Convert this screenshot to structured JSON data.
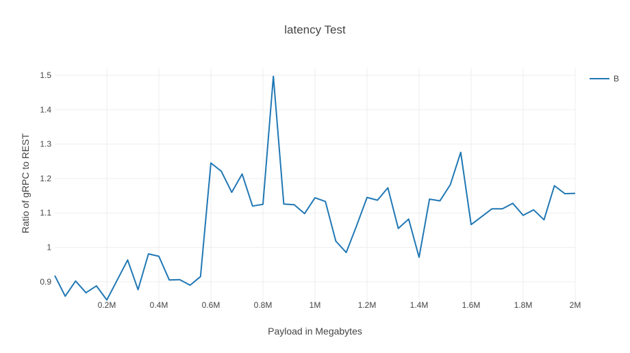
{
  "chart_data": {
    "type": "line",
    "title": "latency Test",
    "xlabel": "Payload in Megabytes",
    "ylabel": "Ratio of gRPC to REST",
    "xlim": [
      0.0,
      2.0
    ],
    "ylim": [
      0.84,
      1.52
    ],
    "grid": true,
    "legend_position": "top-right",
    "x_ticks": [
      {
        "value": 0.2,
        "label": "0.2M"
      },
      {
        "value": 0.4,
        "label": "0.4M"
      },
      {
        "value": 0.6,
        "label": "0.6M"
      },
      {
        "value": 0.8,
        "label": "0.8M"
      },
      {
        "value": 1.0,
        "label": "1M"
      },
      {
        "value": 1.2,
        "label": "1.2M"
      },
      {
        "value": 1.4,
        "label": "1.4M"
      },
      {
        "value": 1.6,
        "label": "1.6M"
      },
      {
        "value": 1.8,
        "label": "1.8M"
      },
      {
        "value": 2.0,
        "label": "2M"
      }
    ],
    "y_ticks": [
      {
        "value": 0.9,
        "label": "0.9"
      },
      {
        "value": 1.0,
        "label": "1"
      },
      {
        "value": 1.1,
        "label": "1.1"
      },
      {
        "value": 1.2,
        "label": "1.2"
      },
      {
        "value": 1.3,
        "label": "1.3"
      },
      {
        "value": 1.4,
        "label": "1.4"
      },
      {
        "value": 1.5,
        "label": "1.5"
      }
    ],
    "series": [
      {
        "name": "B",
        "color": "#1f77b4",
        "x": [
          0.0,
          0.04,
          0.08,
          0.12,
          0.16,
          0.2,
          0.24,
          0.28,
          0.32,
          0.36,
          0.4,
          0.44,
          0.48,
          0.52,
          0.56,
          0.6,
          0.64,
          0.68,
          0.72,
          0.76,
          0.8,
          0.84,
          0.88,
          0.92,
          0.96,
          1.0,
          1.04,
          1.08,
          1.12,
          1.16,
          1.2,
          1.24,
          1.28,
          1.32,
          1.36,
          1.4,
          1.44,
          1.48,
          1.52,
          1.56,
          1.6,
          1.64,
          1.68,
          1.72,
          1.76,
          1.8,
          1.84,
          1.88,
          1.92,
          1.96,
          2.0
        ],
        "y": [
          0.918,
          0.858,
          0.902,
          0.868,
          0.888,
          0.847,
          0.905,
          0.963,
          0.877,
          0.981,
          0.974,
          0.905,
          0.906,
          0.89,
          0.915,
          1.245,
          1.221,
          1.16,
          1.213,
          1.12,
          1.125,
          1.497,
          1.126,
          1.124,
          1.098,
          1.144,
          1.133,
          1.018,
          0.985,
          1.063,
          1.145,
          1.137,
          1.173,
          1.055,
          1.082,
          0.971,
          1.14,
          1.135,
          1.182,
          1.276,
          1.066,
          1.089,
          1.112,
          1.112,
          1.128,
          1.093,
          1.109,
          1.08,
          1.179,
          1.156,
          1.157
        ]
      }
    ]
  }
}
